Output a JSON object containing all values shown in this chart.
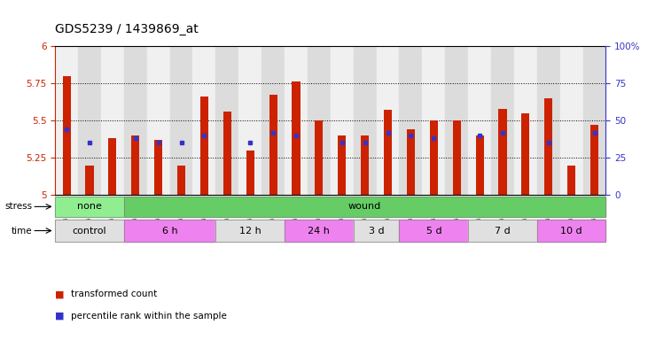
{
  "title": "GDS5239 / 1439869_at",
  "samples": [
    "GSM567621",
    "GSM567622",
    "GSM567623",
    "GSM567627",
    "GSM567628",
    "GSM567629",
    "GSM567633",
    "GSM567634",
    "GSM567635",
    "GSM567639",
    "GSM567640",
    "GSM567641",
    "GSM567645",
    "GSM567646",
    "GSM567647",
    "GSM567651",
    "GSM567652",
    "GSM567653",
    "GSM567657",
    "GSM567658",
    "GSM567659",
    "GSM567663",
    "GSM567664",
    "GSM567665"
  ],
  "red_values": [
    5.8,
    5.2,
    5.38,
    5.4,
    5.37,
    5.2,
    5.66,
    5.56,
    5.3,
    5.67,
    5.76,
    5.5,
    5.4,
    5.4,
    5.57,
    5.44,
    5.5,
    5.5,
    5.4,
    5.58,
    5.55,
    5.65,
    5.2,
    5.47
  ],
  "blue_values": [
    5.44,
    5.35,
    null,
    5.38,
    5.35,
    5.35,
    5.4,
    null,
    5.35,
    5.42,
    5.4,
    null,
    5.35,
    5.35,
    5.42,
    5.4,
    5.38,
    null,
    5.4,
    5.42,
    null,
    5.35,
    null,
    5.42
  ],
  "ylim": [
    5.0,
    6.0
  ],
  "yticks": [
    5.0,
    5.25,
    5.5,
    5.75,
    6.0
  ],
  "right_yticks": [
    0,
    25,
    50,
    75,
    100
  ],
  "stress_groups": [
    {
      "label": "none",
      "start": 0,
      "end": 3,
      "color": "#90EE90"
    },
    {
      "label": "wound",
      "start": 3,
      "end": 24,
      "color": "#66CC66"
    }
  ],
  "time_groups": [
    {
      "label": "control",
      "start": 0,
      "end": 3,
      "color": "#E0E0E0"
    },
    {
      "label": "6 h",
      "start": 3,
      "end": 7,
      "color": "#EE82EE"
    },
    {
      "label": "12 h",
      "start": 7,
      "end": 10,
      "color": "#E0E0E0"
    },
    {
      "label": "24 h",
      "start": 10,
      "end": 13,
      "color": "#EE82EE"
    },
    {
      "label": "3 d",
      "start": 13,
      "end": 15,
      "color": "#E0E0E0"
    },
    {
      "label": "5 d",
      "start": 15,
      "end": 18,
      "color": "#EE82EE"
    },
    {
      "label": "7 d",
      "start": 18,
      "end": 21,
      "color": "#E0E0E0"
    },
    {
      "label": "10 d",
      "start": 21,
      "end": 24,
      "color": "#EE82EE"
    }
  ],
  "bar_color": "#CC2200",
  "blue_color": "#3333CC",
  "background_color": "#F0F0F0",
  "title_fontsize": 10,
  "axis_label_color_left": "#CC2200",
  "axis_label_color_right": "#3333CC",
  "col_bg_even": "#DCDCDC",
  "col_bg_odd": "#F0F0F0"
}
